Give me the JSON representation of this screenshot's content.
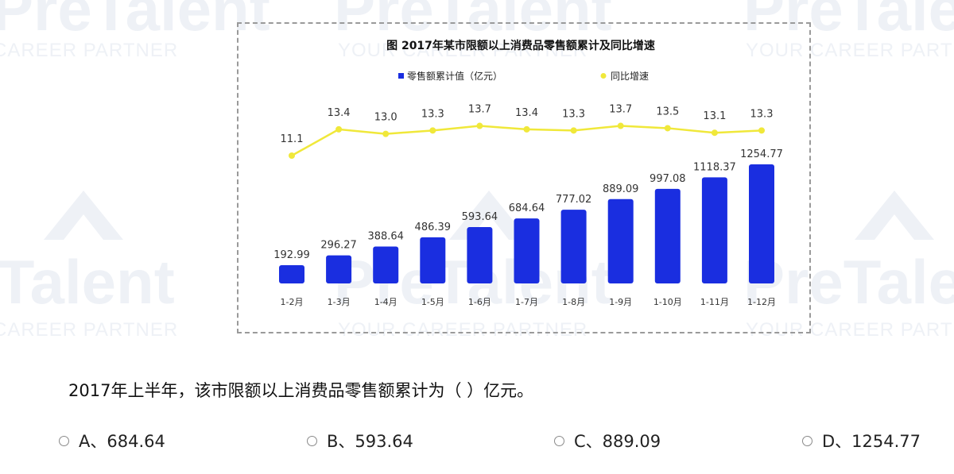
{
  "watermark": {
    "brand": "PreTalent",
    "tagline": "YOUR CAREER PARTNER"
  },
  "chart_data": {
    "type": "bar+line",
    "title": "图  2017年某市限额以上消费品零售额累计及同比增速",
    "legend": [
      "零售额累计值（亿元）",
      "同比增速"
    ],
    "legend_position": "top",
    "categories": [
      "1-2月",
      "1-3月",
      "1-4月",
      "1-5月",
      "1-6月",
      "1-7月",
      "1-8月",
      "1-9月",
      "1-10月",
      "1-11月",
      "1-12月"
    ],
    "series": [
      {
        "name": "零售额累计值（亿元）",
        "type": "bar",
        "color": "#1a2ee0",
        "values": [
          192.99,
          296.27,
          388.64,
          486.39,
          593.64,
          684.64,
          777.02,
          889.09,
          997.08,
          1118.37,
          1254.77
        ],
        "labels": [
          "192.99",
          "296.27",
          "388.64",
          "486.39",
          "593.64",
          "684.64",
          "777.02",
          "889.09",
          "997.08",
          "1118.37",
          "1254.77"
        ]
      },
      {
        "name": "同比增速",
        "type": "line",
        "color": "#f0e83a",
        "values": [
          11.1,
          13.4,
          13.0,
          13.3,
          13.7,
          13.4,
          13.3,
          13.7,
          13.5,
          13.1,
          13.3
        ],
        "labels": [
          "11.1",
          "13.4",
          "13.0",
          "13.3",
          "13.7",
          "13.4",
          "13.3",
          "13.7",
          "13.5",
          "13.1",
          "13.3"
        ]
      }
    ],
    "grid": false
  },
  "question": {
    "text": "2017年上半年，该市限额以上消费品零售额累计为（  ）亿元。",
    "options": [
      {
        "label": "A、684.64"
      },
      {
        "label": "B、593.64"
      },
      {
        "label": "C、889.09"
      },
      {
        "label": "D、1254.77"
      }
    ]
  }
}
